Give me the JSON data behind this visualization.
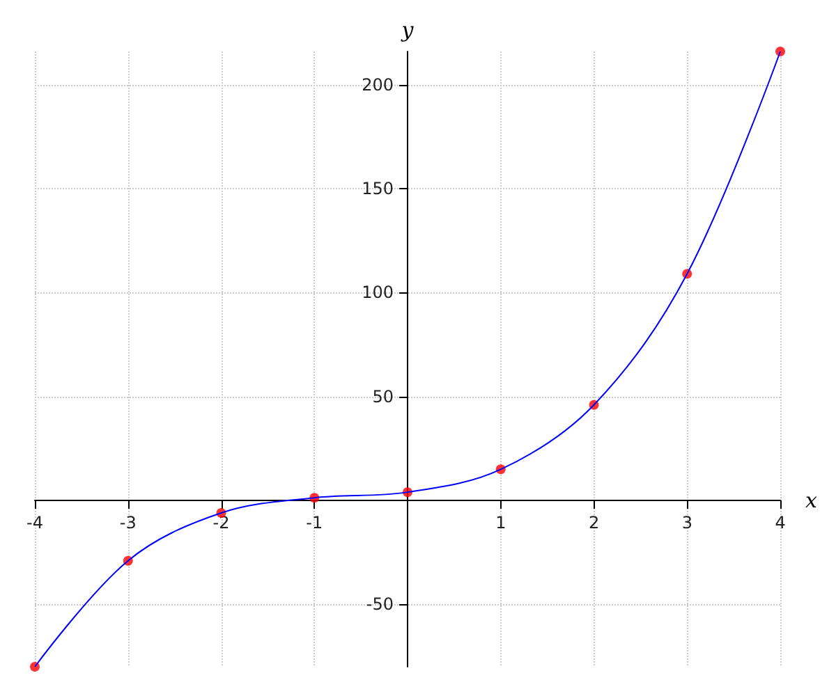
{
  "chart_data": {
    "type": "line",
    "xlabel": "x",
    "ylabel": "y",
    "x": [
      -4,
      -3,
      -2,
      -1,
      0,
      1,
      2,
      3,
      4
    ],
    "series": [
      {
        "color": "#0000ff",
        "marker": "none",
        "values": [
          -80,
          -29,
          -6,
          1.3,
          4,
          15,
          46,
          109,
          216
        ]
      },
      {
        "type": "scatter",
        "color": "#ff0000",
        "marker": "circle",
        "values": [
          -80,
          -29,
          -6,
          1.3,
          4,
          15,
          46,
          109,
          216
        ]
      }
    ],
    "xlim": [
      -4,
      4
    ],
    "ylim": [
      -80,
      216
    ],
    "xticks": [
      -4,
      -3,
      -2,
      -1,
      1,
      2,
      3,
      4
    ],
    "yticks": [
      -50,
      50,
      100,
      150,
      200
    ],
    "grid": true
  }
}
